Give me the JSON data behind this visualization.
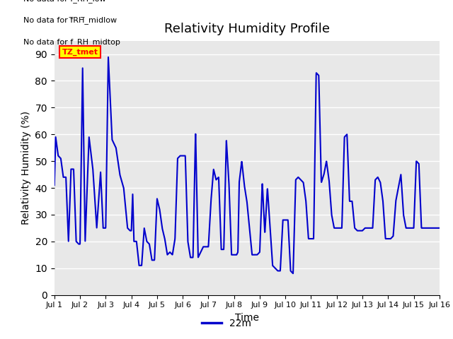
{
  "title": "Relativity Humidity Profile",
  "xlabel": "Time",
  "ylabel": "Relativity Humidity (%)",
  "line_color": "#0000cc",
  "line_width": 1.5,
  "ylim": [
    0,
    95
  ],
  "yticks": [
    0,
    10,
    20,
    30,
    40,
    50,
    60,
    70,
    80,
    90
  ],
  "plot_bg_color": "#e8e8e8",
  "legend_label": "22m",
  "no_data_texts": [
    "No data for f_RH_low",
    "No data for f̅RH̅_midlow",
    "No data for f_RH_midtop"
  ],
  "tz_label": "TZ_tmet",
  "x_tick_labels": [
    "Jul 1",
    "Jul 2",
    "Jul 3",
    "Jul 4",
    "Jul 5",
    "Jul 6",
    "Jul 7",
    "Jul 8",
    "Jul 9",
    "Jul 10",
    "Jul 11",
    "Jul 12",
    "Jul 13",
    "Jul 14",
    "Jul 15",
    "Jul 16"
  ],
  "key_x": [
    0.0,
    0.05,
    0.15,
    0.25,
    0.35,
    0.45,
    0.55,
    0.65,
    0.75,
    0.85,
    0.95,
    1.0,
    1.1,
    1.2,
    1.35,
    1.5,
    1.65,
    1.8,
    1.9,
    2.0,
    2.1,
    2.25,
    2.4,
    2.55,
    2.7,
    2.85,
    2.95,
    3.0,
    3.05,
    3.1,
    3.2,
    3.3,
    3.4,
    3.5,
    3.6,
    3.7,
    3.8,
    3.9,
    4.0,
    4.1,
    4.2,
    4.3,
    4.4,
    4.5,
    4.6,
    4.7,
    4.8,
    4.9,
    5.0,
    5.1,
    5.2,
    5.3,
    5.4,
    5.5,
    5.6,
    5.7,
    5.8,
    5.9,
    6.0,
    6.1,
    6.2,
    6.3,
    6.4,
    6.5,
    6.6,
    6.7,
    6.8,
    6.9,
    7.0,
    7.1,
    7.15,
    7.2,
    7.3,
    7.4,
    7.5,
    7.6,
    7.7,
    7.8,
    7.9,
    8.0,
    8.1,
    8.2,
    8.3,
    8.4,
    8.5,
    8.6,
    8.7,
    8.8,
    8.9,
    9.0,
    9.1,
    9.2,
    9.3,
    9.4,
    9.5,
    9.6,
    9.7,
    9.8,
    9.9,
    10.0,
    10.1,
    10.2,
    10.3,
    10.4,
    10.5,
    10.6,
    10.7,
    10.8,
    10.9,
    11.0,
    11.1,
    11.2,
    11.3,
    11.4,
    11.5,
    11.6,
    11.7,
    11.8,
    11.9,
    12.0,
    12.1,
    12.2,
    12.3,
    12.4,
    12.5,
    12.6,
    12.7,
    12.8,
    12.9,
    13.0,
    13.05,
    13.1,
    13.2,
    13.3,
    13.4,
    13.5,
    13.6,
    13.7,
    13.8,
    13.9,
    14.0,
    14.1,
    14.2,
    14.3,
    14.4,
    14.5,
    14.6,
    14.7,
    14.8,
    14.9,
    15.0
  ],
  "key_y": [
    41,
    59,
    52,
    51,
    44,
    44,
    20,
    47,
    47,
    20,
    19,
    19,
    85,
    20,
    59,
    47,
    25,
    46,
    25,
    25,
    89,
    58,
    55,
    45,
    40,
    25,
    24,
    24,
    38,
    20,
    20,
    11,
    11,
    25,
    20,
    19,
    13,
    13,
    36,
    32,
    25,
    21,
    15,
    16,
    15,
    21,
    51,
    52,
    52,
    52,
    20,
    14,
    14,
    61,
    14,
    16,
    18,
    18,
    18,
    35,
    47,
    43,
    44,
    17,
    17,
    58,
    42,
    15,
    15,
    15,
    16,
    42,
    50,
    41,
    35,
    25,
    15,
    15,
    15,
    16,
    42,
    23,
    40,
    26,
    11,
    10,
    9,
    9,
    28,
    28,
    28,
    9,
    8,
    43,
    44,
    43,
    42,
    35,
    21,
    21,
    21,
    83,
    82,
    42,
    45,
    50,
    43,
    30,
    25,
    25,
    25,
    25,
    59,
    60,
    35,
    35,
    25,
    24,
    24,
    24,
    25,
    25,
    25,
    25,
    43,
    44,
    42,
    35,
    21,
    21,
    21,
    21,
    22,
    35,
    40,
    45,
    30,
    25,
    25,
    25,
    25,
    50,
    49,
    25,
    25,
    25,
    25,
    25,
    25,
    25,
    25
  ]
}
